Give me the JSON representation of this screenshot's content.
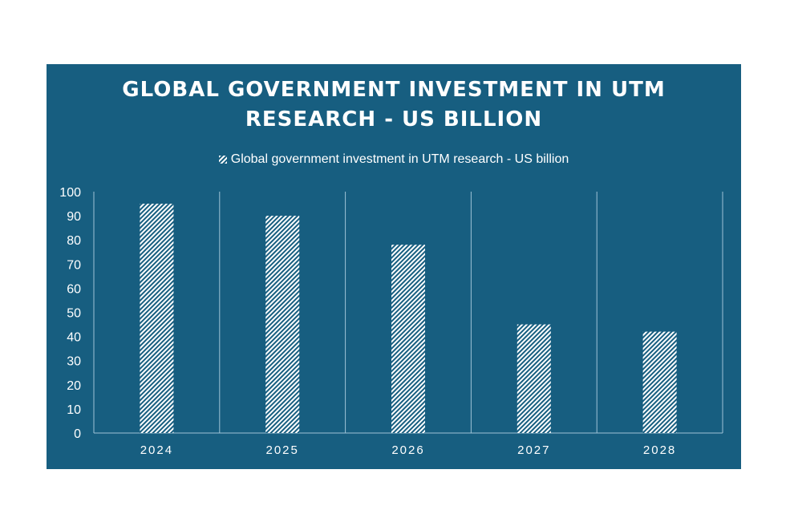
{
  "chart_data": {
    "type": "bar",
    "title_lines": [
      "GLOBAL GOVERNMENT INVESTMENT IN UTM",
      "RESEARCH - US BILLION"
    ],
    "categories": [
      "2024",
      "2025",
      "2026",
      "2027",
      "2028"
    ],
    "series": [
      {
        "name": "Global government investment in UTM research - US billion",
        "values": [
          95,
          90,
          78,
          45,
          42
        ]
      }
    ],
    "xlabel": "",
    "ylabel": "",
    "ylim": [
      0,
      100
    ],
    "yticks": [
      "0",
      "10",
      "20",
      "30",
      "40",
      "50",
      "60",
      "70",
      "80",
      "90",
      "100"
    ],
    "legend_position": "top",
    "gridlines": "vertical category separators",
    "colors": {
      "plot_background": "#175e80",
      "bar_pattern": "white diagonal hatch",
      "text": "#ffffff",
      "axis": "#9fc3d6"
    }
  }
}
